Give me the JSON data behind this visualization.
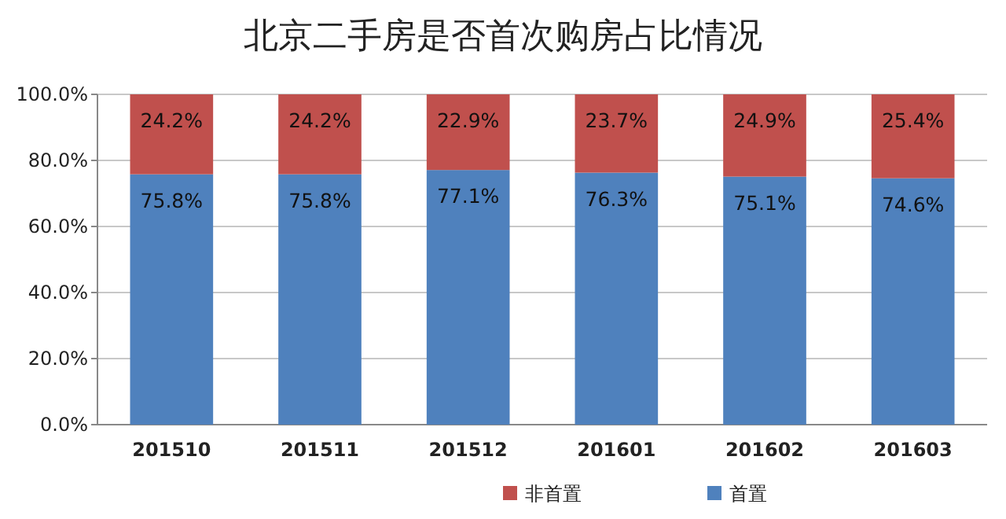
{
  "chart_data": {
    "type": "bar",
    "stacked": true,
    "title": "北京二手房是否首次购房占比情况",
    "categories": [
      "201510",
      "201511",
      "201512",
      "201601",
      "201602",
      "201603"
    ],
    "series": [
      {
        "name": "首置",
        "color": "#4f81bd",
        "values": [
          75.8,
          75.8,
          77.1,
          76.3,
          75.1,
          74.6
        ],
        "value_labels": [
          "75.8%",
          "75.8%",
          "77.1%",
          "76.3%",
          "75.1%",
          "74.6%"
        ]
      },
      {
        "name": "非首置",
        "color": "#c0504d",
        "values": [
          24.2,
          24.2,
          22.9,
          23.7,
          24.9,
          25.4
        ],
        "value_labels": [
          "24.2%",
          "24.2%",
          "22.9%",
          "23.7%",
          "24.9%",
          "25.4%"
        ]
      }
    ],
    "ylim": [
      0,
      100
    ],
    "yticks": [
      {
        "value": 0,
        "label": "0.0%"
      },
      {
        "value": 20,
        "label": "20.0%"
      },
      {
        "value": 40,
        "label": "40.0%"
      },
      {
        "value": 60,
        "label": "60.0%"
      },
      {
        "value": 80,
        "label": "80.0%"
      },
      {
        "value": 100,
        "label": "100.0%"
      }
    ],
    "grid": "y",
    "legend": "bottom"
  }
}
